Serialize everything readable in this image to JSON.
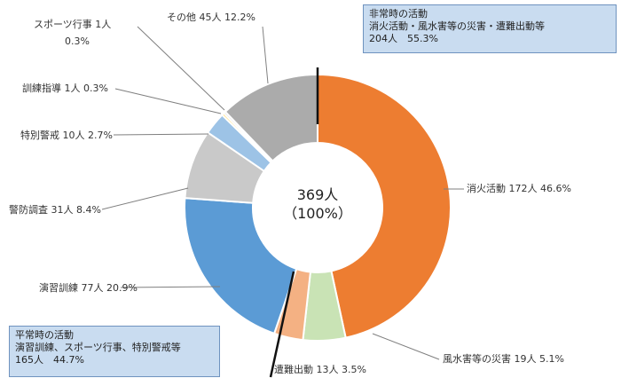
{
  "chart_data": {
    "type": "pie",
    "total_label": "369人",
    "total_percent": "（100%）",
    "slices": [
      {
        "name": "消火活動",
        "count": 172,
        "percent": 46.6,
        "label": "消火活動 172人 46.6%",
        "color": "#ED7D31"
      },
      {
        "name": "風水害等の災害",
        "count": 19,
        "percent": 5.1,
        "label": "風水害等の災害 19人 5.1%",
        "color": "#C9E3B5"
      },
      {
        "name": "遭難出動",
        "count": 13,
        "percent": 3.5,
        "label": "遭難出動 13人 3.5%",
        "color": "#F4B183"
      },
      {
        "name": "演習訓練",
        "count": 77,
        "percent": 20.9,
        "label": "演習訓練 77人 20.9%",
        "color": "#5B9BD5"
      },
      {
        "name": "警防調査",
        "count": 31,
        "percent": 8.4,
        "label": "警防調査 31人 8.4%",
        "color": "#C9C9C9"
      },
      {
        "name": "特別警戒",
        "count": 10,
        "percent": 2.7,
        "label": "特別警戒 10人 2.7%",
        "color": "#9DC3E6"
      },
      {
        "name": "訓練指導",
        "count": 1,
        "percent": 0.3,
        "label": "訓練指導 1人 0.3%",
        "color": "#FFC000"
      },
      {
        "name": "スポーツ行事",
        "count": 1,
        "percent": 0.3,
        "label_line1": "スポーツ行事 1人",
        "label_line2": "0.3%",
        "color": "#DDDDDD"
      },
      {
        "name": "その他",
        "count": 45,
        "percent": 12.2,
        "label": "その他 45人 12.2%",
        "color": "#ABABAB"
      }
    ]
  },
  "callouts": {
    "emergency": {
      "title": "非常時の活動",
      "detail": "消火活動・風水害等の災害・遭難出動等",
      "stat": "204人　55.3%"
    },
    "normal": {
      "title": "平常時の活動",
      "detail": "演習訓練、スポーツ行事、特別警戒等",
      "stat": "165人　44.7%"
    }
  }
}
